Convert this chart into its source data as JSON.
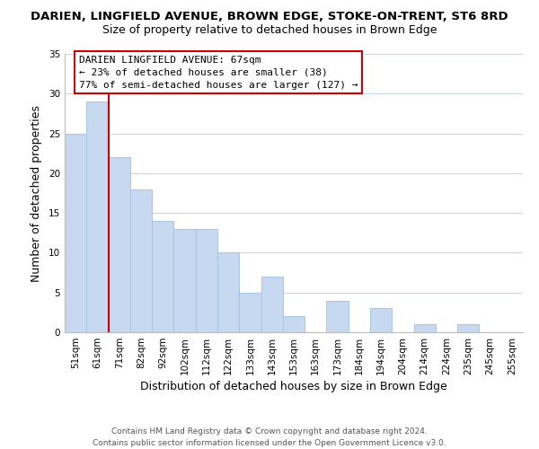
{
  "title_line1": "DARIEN, LINGFIELD AVENUE, BROWN EDGE, STOKE-ON-TRENT, ST6 8RD",
  "title_line2": "Size of property relative to detached houses in Brown Edge",
  "xlabel": "Distribution of detached houses by size in Brown Edge",
  "ylabel": "Number of detached properties",
  "bar_labels": [
    "51sqm",
    "61sqm",
    "71sqm",
    "82sqm",
    "92sqm",
    "102sqm",
    "112sqm",
    "122sqm",
    "133sqm",
    "143sqm",
    "153sqm",
    "163sqm",
    "173sqm",
    "184sqm",
    "194sqm",
    "204sqm",
    "214sqm",
    "224sqm",
    "235sqm",
    "245sqm",
    "255sqm"
  ],
  "bar_heights": [
    25,
    29,
    22,
    18,
    14,
    13,
    13,
    10,
    5,
    7,
    2,
    0,
    4,
    0,
    3,
    0,
    1,
    0,
    1,
    0,
    0
  ],
  "bar_color": "#c6d9f0",
  "bar_edge_color": "#a8c4e0",
  "annotation_title": "DARIEN LINGFIELD AVENUE: 67sqm",
  "annotation_line2": "← 23% of detached houses are smaller (38)",
  "annotation_line3": "77% of semi-detached houses are larger (127) →",
  "vline_x_index": 1.5,
  "vline_color": "#cc0000",
  "annotation_box_color": "#ffffff",
  "annotation_box_edge": "#cc0000",
  "ylim": [
    0,
    35
  ],
  "yticks": [
    0,
    5,
    10,
    15,
    20,
    25,
    30,
    35
  ],
  "footer_line1": "Contains HM Land Registry data © Crown copyright and database right 2024.",
  "footer_line2": "Contains public sector information licensed under the Open Government Licence v3.0.",
  "bg_color": "#ffffff",
  "grid_color": "#c8d8e8",
  "title1_fontsize": 9.5,
  "title2_fontsize": 9,
  "xlabel_fontsize": 9,
  "ylabel_fontsize": 9,
  "tick_fontsize": 7.5,
  "footer_fontsize": 6.5
}
